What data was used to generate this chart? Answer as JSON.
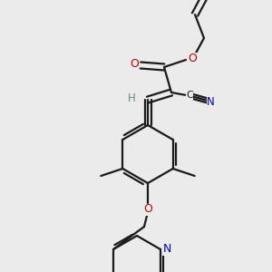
{
  "background_color": "#ebebeb",
  "bond_color": "#1a1a1a",
  "o_color": "#cc0000",
  "n_color": "#0000cc",
  "h_color": "#4a9090",
  "figsize": [
    3.0,
    3.0
  ],
  "dpi": 100,
  "xlim": [
    0,
    300
  ],
  "ylim": [
    0,
    300
  ]
}
